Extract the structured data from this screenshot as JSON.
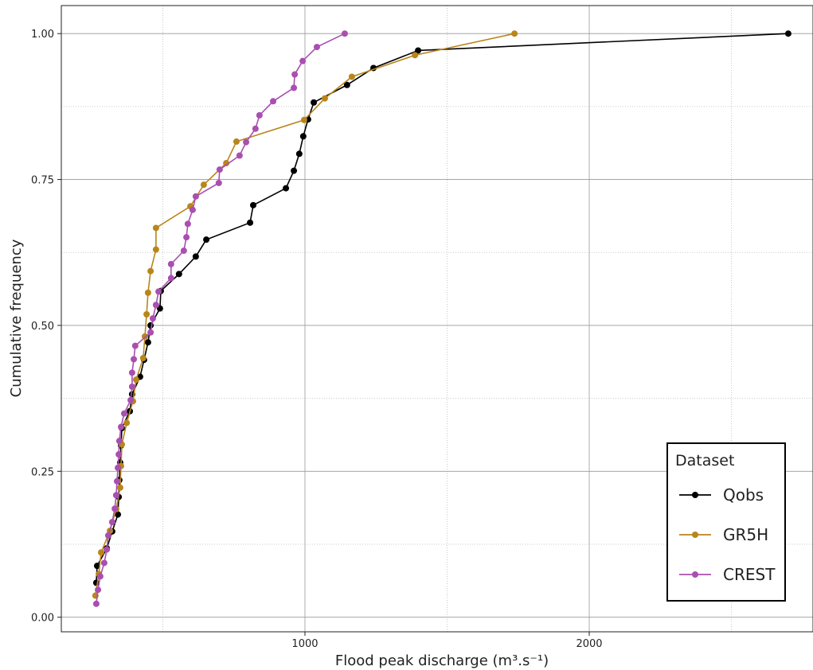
{
  "chart_data": {
    "type": "line",
    "x_label": "Flood peak discharge (m³.s⁻¹)",
    "y_label": "Cumulative frequency",
    "xlim": [
      143,
      2787
    ],
    "ylim": [
      -0.025,
      1.048
    ],
    "xticks": [
      1000,
      2000
    ],
    "xminorticks": [
      500,
      1500,
      2500
    ],
    "yticks": [
      {
        "value": 0,
        "label": "0.00"
      },
      {
        "value": 0.25,
        "label": "0.25"
      },
      {
        "value": 0.5,
        "label": "0.50"
      },
      {
        "value": 0.75,
        "label": "0.75"
      },
      {
        "value": 1,
        "label": "1.00"
      }
    ],
    "yminorticks": [
      0.125,
      0.375,
      0.625,
      0.875
    ],
    "grid": true,
    "legend_title": "Dataset",
    "legend_position": "bottom-right",
    "series": [
      {
        "name": "Qobs",
        "color": "#000000",
        "x": [
          266,
          269,
          303,
          322,
          342,
          345,
          347,
          350,
          353,
          356,
          384,
          392,
          420,
          434,
          448,
          457,
          490,
          493,
          557,
          616,
          653,
          807,
          818,
          933,
          961,
          980,
          994,
          1011,
          1031,
          1148,
          1241,
          1398,
          2700
        ],
        "values": [
          0.059,
          0.088,
          0.118,
          0.147,
          0.176,
          0.206,
          0.235,
          0.265,
          0.294,
          0.324,
          0.353,
          0.382,
          0.412,
          0.441,
          0.471,
          0.5,
          0.529,
          0.559,
          0.588,
          0.618,
          0.647,
          0.676,
          0.706,
          0.735,
          0.765,
          0.794,
          0.824,
          0.853,
          0.882,
          0.912,
          0.941,
          0.971,
          1.0
        ]
      },
      {
        "name": "GR5H",
        "color": "#b8861b",
        "x": [
          263,
          275,
          283,
          314,
          336,
          350,
          353,
          356,
          373,
          395,
          406,
          431,
          437,
          443,
          448,
          457,
          476,
          476,
          597,
          644,
          723,
          759,
          997,
          1070,
          1165,
          1387,
          1737
        ],
        "values": [
          0.037,
          0.074,
          0.111,
          0.148,
          0.185,
          0.222,
          0.259,
          0.296,
          0.333,
          0.37,
          0.407,
          0.444,
          0.481,
          0.519,
          0.556,
          0.593,
          0.63,
          0.667,
          0.704,
          0.741,
          0.778,
          0.815,
          0.852,
          0.889,
          0.926,
          0.963,
          1.0
        ]
      },
      {
        "name": "CREST",
        "color": "#a94fb0",
        "x": [
          266,
          272,
          280,
          294,
          303,
          308,
          322,
          331,
          336,
          339,
          342,
          345,
          347,
          353,
          364,
          387,
          392,
          392,
          398,
          403,
          457,
          465,
          476,
          485,
          529,
          529,
          574,
          583,
          588,
          605,
          616,
          697,
          700,
          770,
          793,
          826,
          840,
          888,
          961,
          964,
          992,
          1042,
          1140
        ],
        "values": [
          0.023,
          0.047,
          0.07,
          0.093,
          0.116,
          0.14,
          0.163,
          0.186,
          0.209,
          0.233,
          0.256,
          0.279,
          0.302,
          0.326,
          0.349,
          0.372,
          0.395,
          0.419,
          0.442,
          0.465,
          0.488,
          0.512,
          0.535,
          0.558,
          0.581,
          0.605,
          0.628,
          0.651,
          0.674,
          0.698,
          0.721,
          0.744,
          0.767,
          0.791,
          0.814,
          0.837,
          0.86,
          0.884,
          0.907,
          0.93,
          0.953,
          0.977,
          1.0
        ]
      }
    ]
  }
}
